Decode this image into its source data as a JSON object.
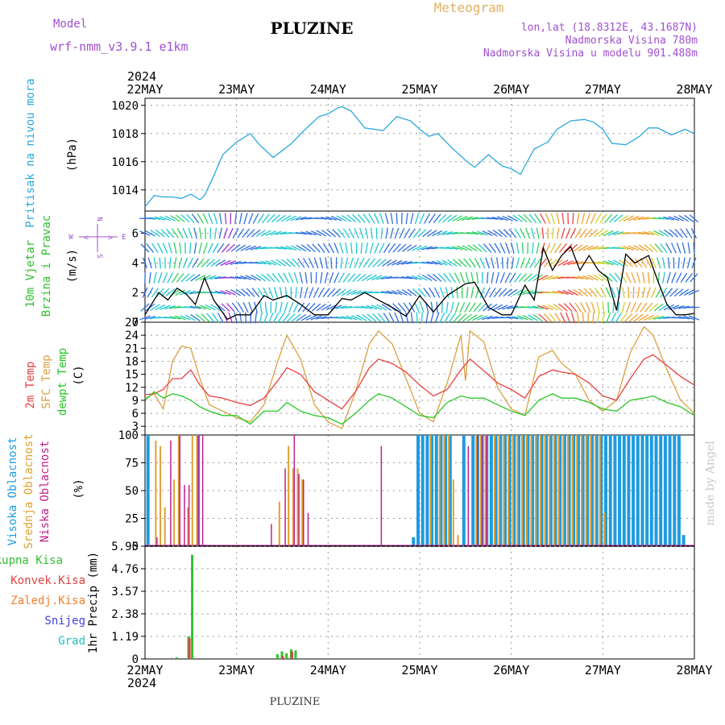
{
  "header": {
    "model_label": "Model",
    "model_name": "wrf-nmm_v3.9.1  e1km",
    "station": "PLUZINE",
    "product": "Meteogram",
    "lonlat": "lon,lat (18.8312E, 43.1687N)",
    "elevation": "Nadmorska Visina 780m",
    "model_elevation": "Nadmorska Visina u modelu 901.488m",
    "year_top": "2024",
    "year_bottom": "2024",
    "footer_station": "PLUZINE",
    "credit": "made by Angel"
  },
  "colors": {
    "pressure": "#2aa8e0",
    "temp2m": "#e84040",
    "sfc": "#dca040",
    "dewpt": "#28c828",
    "high_cloud": "#1e9be0",
    "mid_cloud": "#e0a030",
    "low_cloud": "#c02090",
    "total_precip": "#30c030",
    "convective": "#e04040",
    "frozen": "#f08030",
    "snow": "#4040e0",
    "hail": "#20c0c0",
    "purple_text": "#a050d0",
    "title_orange": "#e0b060"
  },
  "chart_data": [
    {
      "type": "line",
      "title": "Pritisak na nivou mora",
      "ylabel": "(hPa)",
      "x_labels": [
        "22MAY",
        "23MAY",
        "24MAY",
        "25MAY",
        "26MAY",
        "27MAY",
        "28MAY"
      ],
      "x_day_range": [
        0,
        6
      ],
      "yticks": [
        1014,
        1016,
        1018,
        1020
      ],
      "ylim": [
        1012.5,
        1020.5
      ],
      "series": [
        {
          "name": "Pritisak na nivou mora",
          "x": [
            0,
            0.1,
            0.2,
            0.3,
            0.4,
            0.5,
            0.6,
            0.65,
            0.75,
            0.85,
            1.0,
            1.15,
            1.25,
            1.4,
            1.5,
            1.6,
            1.75,
            1.9,
            2.0,
            2.1,
            2.15,
            2.25,
            2.4,
            2.6,
            2.75,
            2.9,
            3.0,
            3.1,
            3.2,
            3.35,
            3.5,
            3.6,
            3.75,
            3.9,
            4.0,
            4.1,
            4.25,
            4.4,
            4.5,
            4.65,
            4.8,
            4.9,
            5.0,
            5.1,
            5.25,
            5.4,
            5.5,
            5.6,
            5.75,
            5.9,
            6.0
          ],
          "values": [
            1012.8,
            1013.6,
            1013.5,
            1013.5,
            1013.4,
            1013.7,
            1013.3,
            1013.6,
            1015.0,
            1016.5,
            1017.4,
            1018.0,
            1017.2,
            1016.3,
            1016.8,
            1017.3,
            1018.3,
            1019.2,
            1019.4,
            1019.8,
            1019.9,
            1019.6,
            1018.4,
            1018.2,
            1019.2,
            1018.9,
            1018.3,
            1017.8,
            1018.0,
            1017.0,
            1016.1,
            1015.6,
            1016.5,
            1015.7,
            1015.5,
            1015.1,
            1016.9,
            1017.4,
            1018.3,
            1018.9,
            1019.0,
            1018.8,
            1018.3,
            1017.3,
            1017.2,
            1017.8,
            1018.4,
            1018.4,
            1017.9,
            1018.3,
            1018.0
          ]
        }
      ]
    },
    {
      "type": "line",
      "title": "10m Vjetar Brzina i Pravac",
      "ylabel": "(m/s)",
      "compass": {
        "north": "N",
        "south": "S",
        "west": "W",
        "east": "E"
      },
      "yticks": [
        0,
        2,
        4,
        6
      ],
      "ylim": [
        0,
        7.5
      ],
      "series": [
        {
          "name": "10m Vjetar",
          "x": [
            0,
            0.15,
            0.25,
            0.35,
            0.45,
            0.55,
            0.65,
            0.75,
            0.9,
            1.0,
            1.15,
            1.3,
            1.4,
            1.55,
            1.7,
            1.85,
            2.0,
            2.15,
            2.25,
            2.4,
            2.55,
            2.7,
            2.85,
            3.0,
            3.15,
            3.3,
            3.5,
            3.6,
            3.75,
            3.9,
            4.0,
            4.15,
            4.25,
            4.35,
            4.45,
            4.55,
            4.65,
            4.75,
            4.85,
            4.95,
            5.05,
            5.15,
            5.25,
            5.35,
            5.5,
            5.6,
            5.7,
            5.8,
            5.9,
            6.0
          ],
          "values": [
            0.5,
            2.0,
            1.5,
            2.3,
            1.9,
            1.2,
            3.0,
            1.5,
            0.2,
            0.5,
            0.5,
            1.8,
            1.5,
            1.8,
            1.2,
            0.5,
            0.5,
            1.6,
            1.5,
            2.0,
            1.5,
            1.0,
            0.4,
            1.8,
            0.7,
            1.8,
            2.6,
            2.7,
            1.0,
            0.5,
            0.5,
            2.5,
            1.5,
            5.0,
            3.5,
            4.5,
            5.1,
            3.5,
            4.5,
            3.5,
            3.0,
            0.8,
            4.6,
            4.0,
            4.5,
            2.8,
            1.2,
            0.5,
            0.5,
            0.6
          ]
        }
      ]
    },
    {
      "type": "line",
      "title": "2m Temp / SFC Temp / dewpt Temp",
      "ylabel": "(C)",
      "yticks": [
        3,
        6,
        9,
        12,
        15,
        18,
        21,
        24,
        27
      ],
      "ylim": [
        1,
        27
      ],
      "series": [
        {
          "name": "2m Temp",
          "x": [
            0,
            0.1,
            0.2,
            0.3,
            0.4,
            0.5,
            0.6,
            0.7,
            0.85,
            1.0,
            1.15,
            1.3,
            1.45,
            1.55,
            1.7,
            1.85,
            2.0,
            2.15,
            2.3,
            2.45,
            2.55,
            2.7,
            2.85,
            3.0,
            3.15,
            3.3,
            3.45,
            3.55,
            3.7,
            3.85,
            4.0,
            4.15,
            4.3,
            4.45,
            4.55,
            4.7,
            4.85,
            5.0,
            5.15,
            5.3,
            5.45,
            5.55,
            5.7,
            5.85,
            6.0
          ],
          "values": [
            10.3,
            10.5,
            11.5,
            14.0,
            14.0,
            16.0,
            12.5,
            10.0,
            9.5,
            8.5,
            7.8,
            9.5,
            13.5,
            16.5,
            15.0,
            11.0,
            9.0,
            7.0,
            11.0,
            16.5,
            18.5,
            17.5,
            15.5,
            12.5,
            10.0,
            11.5,
            16.0,
            18.5,
            15.8,
            13.0,
            11.5,
            9.5,
            14.5,
            16.0,
            15.5,
            15.0,
            13.0,
            10.0,
            9.0,
            14.0,
            18.5,
            19.5,
            17.0,
            14.5,
            12.5
          ]
        },
        {
          "name": "SFC Temp",
          "x": [
            0,
            0.1,
            0.2,
            0.3,
            0.4,
            0.5,
            0.6,
            0.7,
            0.85,
            1.0,
            1.15,
            1.3,
            1.45,
            1.55,
            1.7,
            1.85,
            2.0,
            2.15,
            2.3,
            2.45,
            2.55,
            2.7,
            2.85,
            3.0,
            3.15,
            3.3,
            3.45,
            3.5,
            3.55,
            3.7,
            3.85,
            4.0,
            4.15,
            4.3,
            4.45,
            4.55,
            4.7,
            4.85,
            5.0,
            5.15,
            5.3,
            5.45,
            5.55,
            5.7,
            5.85,
            6.0
          ],
          "values": [
            9.5,
            10.5,
            7.0,
            18.0,
            21.5,
            21.0,
            14.0,
            8.0,
            6.5,
            5.0,
            4.0,
            8.0,
            18.0,
            24.0,
            18.5,
            8.0,
            4.0,
            2.5,
            11.0,
            22.0,
            25.0,
            22.0,
            14.0,
            6.0,
            4.0,
            13.0,
            24.0,
            13.5,
            25.0,
            22.5,
            12.0,
            7.0,
            5.5,
            19.0,
            20.5,
            17.5,
            15.0,
            9.0,
            6.5,
            9.0,
            20.0,
            26.0,
            24.0,
            16.0,
            9.0,
            6.0
          ]
        },
        {
          "name": "dewpt Temp",
          "x": [
            0,
            0.1,
            0.2,
            0.3,
            0.4,
            0.5,
            0.6,
            0.7,
            0.85,
            1.0,
            1.15,
            1.3,
            1.45,
            1.55,
            1.7,
            1.85,
            2.0,
            2.15,
            2.3,
            2.45,
            2.55,
            2.7,
            2.85,
            3.0,
            3.15,
            3.3,
            3.45,
            3.55,
            3.7,
            3.85,
            4.0,
            4.15,
            4.3,
            4.45,
            4.55,
            4.7,
            4.85,
            5.0,
            5.15,
            5.3,
            5.45,
            5.55,
            5.7,
            5.85,
            6.0
          ],
          "values": [
            9.0,
            11.0,
            9.5,
            10.5,
            10.0,
            9.0,
            7.5,
            6.5,
            5.5,
            5.5,
            3.5,
            6.5,
            6.5,
            8.5,
            6.5,
            5.5,
            5.0,
            3.5,
            6.0,
            9.0,
            10.5,
            9.5,
            7.5,
            5.5,
            5.0,
            8.5,
            10.0,
            9.5,
            9.5,
            8.0,
            6.5,
            5.5,
            9.0,
            10.5,
            9.5,
            9.5,
            8.5,
            7.0,
            6.5,
            9.0,
            9.5,
            10.0,
            8.5,
            7.5,
            5.5
          ]
        }
      ]
    },
    {
      "type": "bar",
      "title": "Visoka Oblacnost / Srednja Oblacnost / Niska Oblacnost",
      "ylabel": "(%)",
      "yticks": [
        0,
        25,
        50,
        75,
        100
      ],
      "ylim": [
        0,
        100
      ],
      "series": [
        {
          "name": "Visoka Oblacnost",
          "x": [
            0.05,
            0.6,
            2.95,
            3.0,
            3.05,
            3.1,
            3.15,
            3.2,
            3.25,
            3.3,
            3.35,
            3.5,
            3.6,
            3.65,
            3.7,
            3.75,
            3.8,
            3.85,
            3.9,
            3.95,
            4.0,
            4.05,
            4.1,
            4.15,
            4.2,
            4.25,
            4.3,
            4.35,
            4.4,
            4.45,
            4.5,
            4.55,
            4.6,
            4.65,
            4.7,
            4.75,
            4.8,
            4.85,
            4.9,
            4.95,
            5.0,
            5.05,
            5.1,
            5.15,
            5.2,
            5.25,
            5.3,
            5.35,
            5.4,
            5.45,
            5.5,
            5.55,
            5.6,
            5.65,
            5.7,
            5.75,
            5.8,
            5.85,
            5.9
          ],
          "values": [
            100,
            100,
            8,
            100,
            100,
            100,
            100,
            100,
            100,
            100,
            100,
            100,
            100,
            100,
            100,
            100,
            100,
            100,
            100,
            100,
            100,
            100,
            100,
            100,
            100,
            100,
            100,
            100,
            100,
            100,
            100,
            100,
            100,
            100,
            100,
            100,
            100,
            100,
            100,
            100,
            100,
            100,
            100,
            100,
            100,
            100,
            100,
            100,
            100,
            100,
            100,
            100,
            100,
            100,
            100,
            100,
            100,
            100,
            10
          ]
        },
        {
          "name": "Srednja Oblacnost",
          "x": [
            0.1,
            0.15,
            0.2,
            0.3,
            0.35,
            0.45,
            0.5,
            0.55,
            1.45,
            1.55,
            1.6,
            1.65,
            1.7,
            3.1,
            3.2,
            3.25,
            3.3,
            3.35,
            3.4,
            3.6,
            3.65,
            3.7,
            3.8,
            3.85,
            3.9,
            3.95,
            4.0,
            4.05,
            4.1,
            4.15,
            4.2,
            4.25,
            4.3,
            4.35,
            4.4,
            4.45,
            4.5,
            4.55,
            4.6,
            4.65,
            4.7,
            4.75,
            4.8,
            4.85,
            4.9,
            4.95,
            5.0
          ],
          "values": [
            95,
            90,
            35,
            60,
            100,
            35,
            100,
            100,
            40,
            90,
            70,
            70,
            60,
            100,
            100,
            100,
            100,
            60,
            10,
            100,
            100,
            100,
            100,
            100,
            100,
            100,
            100,
            100,
            100,
            100,
            100,
            100,
            100,
            100,
            100,
            100,
            100,
            100,
            100,
            100,
            100,
            100,
            100,
            100,
            100,
            100,
            30
          ]
        },
        {
          "name": "Niska Oblacnost",
          "x": [
            0.1,
            0.25,
            0.35,
            0.4,
            0.45,
            0.55,
            0.6,
            1.35,
            1.5,
            1.6,
            1.65,
            1.7,
            1.75,
            2.55,
            3.5,
            3.6,
            3.65,
            3.7
          ],
          "values": [
            8,
            95,
            100,
            55,
            55,
            100,
            100,
            20,
            70,
            100,
            65,
            60,
            30,
            90,
            90,
            100,
            100,
            100
          ]
        }
      ]
    },
    {
      "type": "bar",
      "title": "1hr Precip",
      "ylabel": "1hr Precip (mm)",
      "legend": [
        "Ukupna Kisa",
        "Konvek.Kisa",
        "Zaledj.Kisa",
        "Snijeg",
        "Grad"
      ],
      "yticks": [
        0,
        1.19,
        2.38,
        3.57,
        4.76,
        5.95
      ],
      "ylabels": [
        "0",
        "1.19",
        "2.38",
        "3.57",
        "4.76",
        "5.95"
      ],
      "ylim": [
        0,
        5.95
      ],
      "series": [
        {
          "name": "Ukupna Kisa",
          "x": [
            0.3,
            0.35,
            0.48,
            0.52,
            1.45,
            1.5,
            1.55,
            1.6,
            1.65
          ],
          "values": [
            0.05,
            0.08,
            1.2,
            5.5,
            0.25,
            0.4,
            0.3,
            0.5,
            0.45
          ]
        },
        {
          "name": "Konvek.Kisa",
          "x": [
            0.3,
            0.48,
            1.5,
            1.6
          ],
          "values": [
            0.03,
            1.1,
            0.15,
            0.4
          ]
        }
      ]
    }
  ]
}
